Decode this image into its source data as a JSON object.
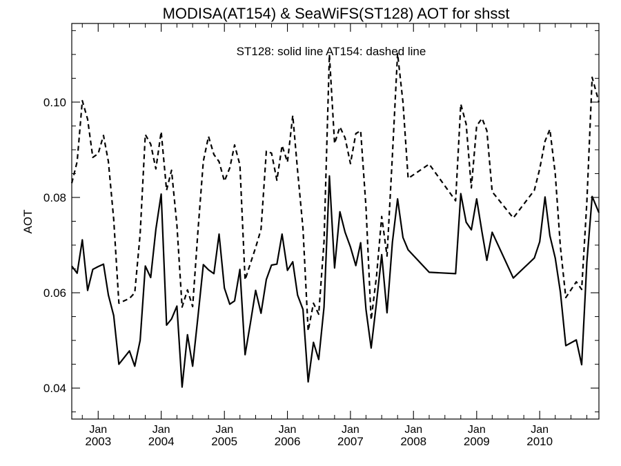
{
  "chart_data": {
    "type": "line",
    "title": "MODISA(AT154) & SeaWiFS(ST128)  AOT for shsst",
    "annotation": "ST128: solid line   AT154: dashed line",
    "ylabel": "AOT",
    "xlabel": "",
    "xlim": [
      "2002-08-01",
      "2010-12-10"
    ],
    "ylim": [
      0.0335,
      0.1165
    ],
    "y_ticks": [
      0.04,
      0.06,
      0.08,
      0.1
    ],
    "y_tick_labels": [
      "0.04",
      "0.06",
      "0.08",
      "0.10"
    ],
    "x_ticks": [
      {
        "date": "2003-01-01",
        "month": "Jan",
        "year": "2003"
      },
      {
        "date": "2004-01-01",
        "month": "Jan",
        "year": "2004"
      },
      {
        "date": "2005-01-01",
        "month": "Jan",
        "year": "2005"
      },
      {
        "date": "2006-01-01",
        "month": "Jan",
        "year": "2006"
      },
      {
        "date": "2007-01-01",
        "month": "Jan",
        "year": "2007"
      },
      {
        "date": "2008-01-01",
        "month": "Jan",
        "year": "2008"
      },
      {
        "date": "2009-01-01",
        "month": "Jan",
        "year": "2009"
      },
      {
        "date": "2010-01-01",
        "month": "Jan",
        "year": "2010"
      }
    ],
    "grid": false,
    "series": [
      {
        "name": "ST128",
        "line_style": "solid",
        "color": "#000000",
        "points": [
          [
            "2002-08-01",
            0.0656
          ],
          [
            "2002-09-01",
            0.0641
          ],
          [
            "2002-10-01",
            0.0711
          ],
          [
            "2002-11-01",
            0.0605
          ],
          [
            "2002-12-01",
            0.0649
          ],
          [
            "2003-01-01",
            0.0655
          ],
          [
            "2003-02-01",
            0.066
          ],
          [
            "2003-03-01",
            0.0595
          ],
          [
            "2003-04-01",
            0.0552
          ],
          [
            "2003-05-01",
            0.045
          ],
          [
            "2003-07-01",
            0.0478
          ],
          [
            "2003-08-01",
            0.0446
          ],
          [
            "2003-09-01",
            0.05
          ],
          [
            "2003-10-01",
            0.0656
          ],
          [
            "2003-11-01",
            0.0632
          ],
          [
            "2003-12-01",
            0.0733
          ],
          [
            "2004-01-01",
            0.0807
          ],
          [
            "2004-02-01",
            0.0532
          ],
          [
            "2004-03-01",
            0.0545
          ],
          [
            "2004-04-01",
            0.0572
          ],
          [
            "2004-05-01",
            0.0402
          ],
          [
            "2004-06-01",
            0.0512
          ],
          [
            "2004-07-01",
            0.0446
          ],
          [
            "2004-08-01",
            0.055
          ],
          [
            "2004-09-01",
            0.0659
          ],
          [
            "2004-10-01",
            0.0648
          ],
          [
            "2004-11-01",
            0.064
          ],
          [
            "2004-12-01",
            0.0723
          ],
          [
            "2005-01-01",
            0.061
          ],
          [
            "2005-02-01",
            0.0576
          ],
          [
            "2005-03-01",
            0.0583
          ],
          [
            "2005-04-01",
            0.0649
          ],
          [
            "2005-05-01",
            0.047
          ],
          [
            "2005-06-01",
            0.0537
          ],
          [
            "2005-07-01",
            0.0605
          ],
          [
            "2005-08-01",
            0.0557
          ],
          [
            "2005-09-01",
            0.0628
          ],
          [
            "2005-10-01",
            0.0658
          ],
          [
            "2005-11-01",
            0.066
          ],
          [
            "2005-12-01",
            0.0723
          ],
          [
            "2006-01-01",
            0.0647
          ],
          [
            "2006-02-01",
            0.0665
          ],
          [
            "2006-03-01",
            0.0595
          ],
          [
            "2006-04-01",
            0.0565
          ],
          [
            "2006-05-01",
            0.0413
          ],
          [
            "2006-06-01",
            0.0496
          ],
          [
            "2006-07-01",
            0.046
          ],
          [
            "2006-08-01",
            0.057
          ],
          [
            "2006-09-01",
            0.0845
          ],
          [
            "2006-10-01",
            0.0652
          ],
          [
            "2006-11-01",
            0.077
          ],
          [
            "2006-12-01",
            0.0727
          ],
          [
            "2007-01-01",
            0.0696
          ],
          [
            "2007-02-01",
            0.0657
          ],
          [
            "2007-03-01",
            0.0705
          ],
          [
            "2007-04-01",
            0.0565
          ],
          [
            "2007-05-01",
            0.0484
          ],
          [
            "2007-06-01",
            0.058
          ],
          [
            "2007-07-01",
            0.068
          ],
          [
            "2007-08-01",
            0.0558
          ],
          [
            "2007-09-01",
            0.0706
          ],
          [
            "2007-10-01",
            0.0797
          ],
          [
            "2007-11-01",
            0.0716
          ],
          [
            "2007-12-01",
            0.069
          ],
          [
            "2008-04-01",
            0.0643
          ],
          [
            "2008-09-01",
            0.064
          ],
          [
            "2008-10-01",
            0.0808
          ],
          [
            "2008-11-01",
            0.0748
          ],
          [
            "2008-12-01",
            0.0732
          ],
          [
            "2009-01-01",
            0.0797
          ],
          [
            "2009-02-01",
            0.0727
          ],
          [
            "2009-03-01",
            0.0668
          ],
          [
            "2009-04-01",
            0.0727
          ],
          [
            "2009-08-01",
            0.0631
          ],
          [
            "2009-12-01",
            0.0673
          ],
          [
            "2010-01-01",
            0.0707
          ],
          [
            "2010-02-01",
            0.0801
          ],
          [
            "2010-03-01",
            0.072
          ],
          [
            "2010-04-01",
            0.0673
          ],
          [
            "2010-05-01",
            0.0601
          ],
          [
            "2010-06-01",
            0.0489
          ],
          [
            "2010-08-01",
            0.0501
          ],
          [
            "2010-09-01",
            0.0449
          ],
          [
            "2010-10-01",
            0.0664
          ],
          [
            "2010-11-01",
            0.0802
          ],
          [
            "2010-12-10",
            0.0768
          ]
        ]
      },
      {
        "name": "AT154",
        "line_style": "dashed",
        "color": "#000000",
        "points": [
          [
            "2002-08-01",
            0.083
          ],
          [
            "2002-09-01",
            0.0875
          ],
          [
            "2002-10-01",
            0.1003
          ],
          [
            "2002-11-01",
            0.0964
          ],
          [
            "2002-12-01",
            0.0884
          ],
          [
            "2003-01-01",
            0.0892
          ],
          [
            "2003-02-01",
            0.093
          ],
          [
            "2003-03-01",
            0.0875
          ],
          [
            "2003-04-01",
            0.0754
          ],
          [
            "2003-05-01",
            0.0578
          ],
          [
            "2003-07-01",
            0.0588
          ],
          [
            "2003-08-01",
            0.06
          ],
          [
            "2003-09-01",
            0.0723
          ],
          [
            "2003-10-01",
            0.0932
          ],
          [
            "2003-11-01",
            0.0912
          ],
          [
            "2003-12-01",
            0.086
          ],
          [
            "2004-01-01",
            0.0938
          ],
          [
            "2004-02-01",
            0.0815
          ],
          [
            "2004-03-01",
            0.0857
          ],
          [
            "2004-04-01",
            0.0742
          ],
          [
            "2004-05-01",
            0.057
          ],
          [
            "2004-06-01",
            0.0606
          ],
          [
            "2004-07-01",
            0.0571
          ],
          [
            "2004-08-01",
            0.073
          ],
          [
            "2004-09-01",
            0.0876
          ],
          [
            "2004-10-01",
            0.0928
          ],
          [
            "2004-11-01",
            0.089
          ],
          [
            "2004-12-01",
            0.0875
          ],
          [
            "2005-01-01",
            0.0834
          ],
          [
            "2005-02-01",
            0.0862
          ],
          [
            "2005-03-01",
            0.091
          ],
          [
            "2005-04-01",
            0.0868
          ],
          [
            "2005-05-01",
            0.0627
          ],
          [
            "2005-06-01",
            0.0662
          ],
          [
            "2005-07-01",
            0.0695
          ],
          [
            "2005-08-01",
            0.0733
          ],
          [
            "2005-09-01",
            0.0897
          ],
          [
            "2005-10-01",
            0.0893
          ],
          [
            "2005-11-01",
            0.0836
          ],
          [
            "2005-12-01",
            0.0909
          ],
          [
            "2006-01-01",
            0.0874
          ],
          [
            "2006-02-01",
            0.0972
          ],
          [
            "2006-03-01",
            0.0856
          ],
          [
            "2006-04-01",
            0.0735
          ],
          [
            "2006-05-01",
            0.052
          ],
          [
            "2006-06-01",
            0.0578
          ],
          [
            "2006-07-01",
            0.0555
          ],
          [
            "2006-08-01",
            0.0707
          ],
          [
            "2006-09-01",
            0.11
          ],
          [
            "2006-10-01",
            0.0913
          ],
          [
            "2006-11-01",
            0.0948
          ],
          [
            "2006-12-01",
            0.0925
          ],
          [
            "2007-01-01",
            0.0871
          ],
          [
            "2007-02-01",
            0.0934
          ],
          [
            "2007-03-01",
            0.094
          ],
          [
            "2007-04-01",
            0.078
          ],
          [
            "2007-05-01",
            0.0543
          ],
          [
            "2007-06-01",
            0.0635
          ],
          [
            "2007-07-01",
            0.076
          ],
          [
            "2007-08-01",
            0.0677
          ],
          [
            "2007-09-01",
            0.0888
          ],
          [
            "2007-10-01",
            0.1102
          ],
          [
            "2007-11-01",
            0.1
          ],
          [
            "2007-12-01",
            0.084
          ],
          [
            "2008-04-01",
            0.087
          ],
          [
            "2008-09-01",
            0.0793
          ],
          [
            "2008-10-01",
            0.0996
          ],
          [
            "2008-11-01",
            0.0954
          ],
          [
            "2008-12-01",
            0.082
          ],
          [
            "2009-01-01",
            0.095
          ],
          [
            "2009-02-01",
            0.0966
          ],
          [
            "2009-03-01",
            0.094
          ],
          [
            "2009-04-01",
            0.0812
          ],
          [
            "2009-08-01",
            0.0757
          ],
          [
            "2009-12-01",
            0.0815
          ],
          [
            "2010-01-01",
            0.086
          ],
          [
            "2010-02-01",
            0.0918
          ],
          [
            "2010-03-01",
            0.0943
          ],
          [
            "2010-04-01",
            0.085
          ],
          [
            "2010-05-01",
            0.0696
          ],
          [
            "2010-06-01",
            0.059
          ],
          [
            "2010-08-01",
            0.0623
          ],
          [
            "2010-09-01",
            0.0607
          ],
          [
            "2010-10-01",
            0.079
          ],
          [
            "2010-11-01",
            0.1052
          ],
          [
            "2010-12-10",
            0.1
          ]
        ]
      }
    ]
  }
}
